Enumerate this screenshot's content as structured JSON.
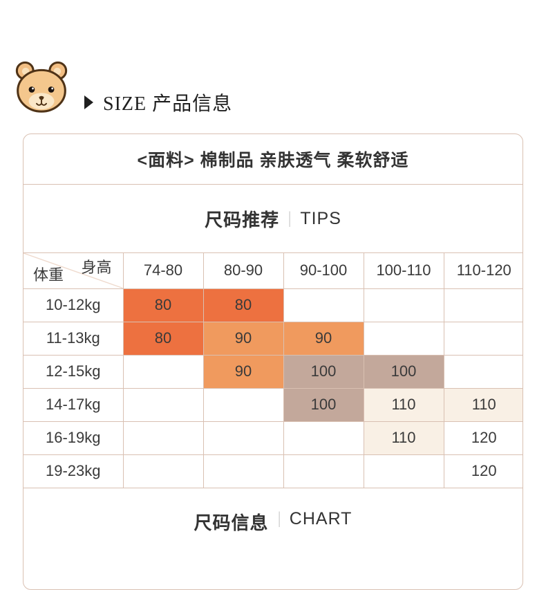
{
  "header": {
    "title_en": "SIZE",
    "title_cn": "产品信息",
    "title": "SIZE 产品信息"
  },
  "panel": {
    "fabric_note": "<面料> 棉制品 亲肤透气 柔软舒适",
    "tips": {
      "cn": "尺码推荐",
      "divider": "|",
      "en": "TIPS"
    },
    "footer": {
      "cn": "尺码信息",
      "divider": "|",
      "en": "CHART"
    }
  },
  "colors": {
    "dark_orange": "#ED7140",
    "light_orange": "#F09A5E",
    "taupe": "#C3A89B",
    "cream": "#F9F0E5",
    "none": "transparent",
    "border": "#D9C0B2",
    "text": "#333333"
  },
  "chart_data": {
    "type": "table",
    "title": "尺码推荐 | TIPS",
    "corner_top_right": "身高",
    "corner_bottom_left": "体重",
    "columns": [
      "74-80",
      "80-90",
      "90-100",
      "100-110",
      "110-120"
    ],
    "rows": [
      {
        "weight": "10-12kg",
        "cells": [
          {
            "value": "80",
            "color": "dark_orange"
          },
          {
            "value": "80",
            "color": "dark_orange"
          },
          null,
          null,
          null
        ]
      },
      {
        "weight": "11-13kg",
        "cells": [
          {
            "value": "80",
            "color": "dark_orange"
          },
          {
            "value": "90",
            "color": "light_orange"
          },
          {
            "value": "90",
            "color": "light_orange"
          },
          null,
          null
        ]
      },
      {
        "weight": "12-15kg",
        "cells": [
          null,
          {
            "value": "90",
            "color": "light_orange"
          },
          {
            "value": "100",
            "color": "taupe"
          },
          {
            "value": "100",
            "color": "taupe"
          },
          null
        ]
      },
      {
        "weight": "14-17kg",
        "cells": [
          null,
          null,
          {
            "value": "100",
            "color": "taupe"
          },
          {
            "value": "110",
            "color": "cream"
          },
          {
            "value": "110",
            "color": "cream"
          }
        ]
      },
      {
        "weight": "16-19kg",
        "cells": [
          null,
          null,
          null,
          {
            "value": "110",
            "color": "cream"
          },
          {
            "value": "120",
            "color": "none"
          }
        ]
      },
      {
        "weight": "19-23kg",
        "cells": [
          null,
          null,
          null,
          null,
          {
            "value": "120",
            "color": "none"
          }
        ]
      }
    ]
  }
}
